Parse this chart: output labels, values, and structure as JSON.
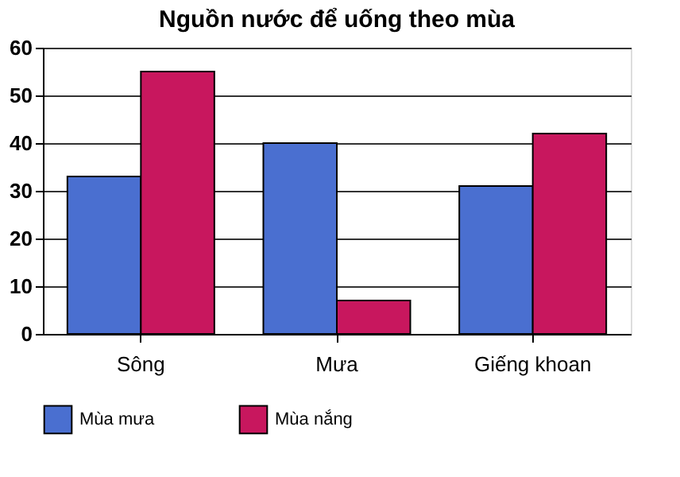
{
  "chart_data": {
    "type": "bar",
    "title": "Nguồn nước để uống theo mùa",
    "categories": [
      "Sông",
      "Mưa",
      "Giếng khoan"
    ],
    "series": [
      {
        "name": "Mùa mưa",
        "color": "#4a6fd0",
        "values": [
          33,
          40,
          31
        ]
      },
      {
        "name": "Mùa nắng",
        "color": "#c8175e",
        "values": [
          55,
          7,
          42
        ]
      }
    ],
    "ylim": [
      0,
      60
    ],
    "yticks": [
      0,
      10,
      20,
      30,
      40,
      50,
      60
    ],
    "grid": "y",
    "legend": "bottom"
  }
}
